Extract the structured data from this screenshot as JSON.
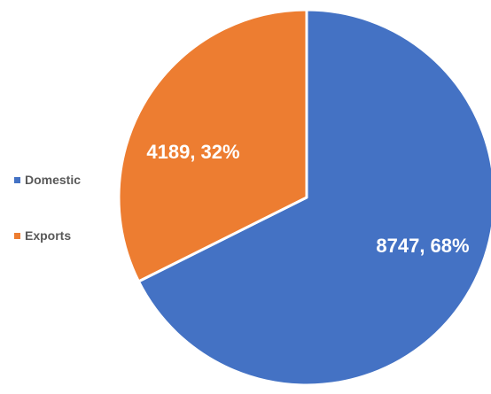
{
  "chart_data": {
    "type": "pie",
    "categories": [
      "Domestic",
      "Exports"
    ],
    "values": [
      8747,
      4189
    ],
    "percentages": [
      68,
      32
    ],
    "data_labels": [
      "8747, 68%",
      "4189, 32%"
    ],
    "colors": [
      "#4472C4",
      "#ED7D31"
    ],
    "start_angle_deg": 0,
    "direction": "clockwise",
    "legend": {
      "placement": "left",
      "items": [
        "Domestic",
        "Exports"
      ]
    }
  }
}
